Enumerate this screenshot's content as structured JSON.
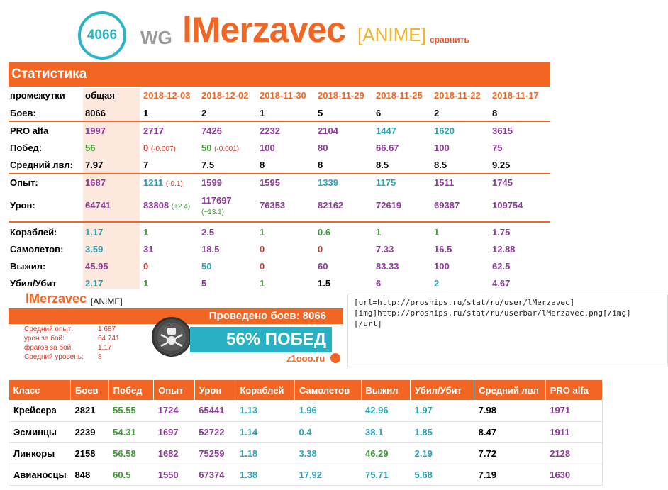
{
  "header": {
    "rating": "4066",
    "clan": "WG",
    "nickname": "lMerzavec",
    "alliance": "[ANIME]",
    "compare": "сравнить"
  },
  "stats": {
    "title": "Статистика",
    "periods_label": "промежутки",
    "columns": [
      "общая",
      "2018-12-03",
      "2018-12-02",
      "2018-11-30",
      "2018-11-29",
      "2018-11-25",
      "2018-11-22",
      "2018-11-17"
    ],
    "rows": [
      {
        "label": "Боев:",
        "cells": [
          {
            "v": "8066"
          },
          {
            "v": "1"
          },
          {
            "v": "2"
          },
          {
            "v": "1"
          },
          {
            "v": "5"
          },
          {
            "v": "6"
          },
          {
            "v": "2"
          },
          {
            "v": "8"
          }
        ]
      },
      {
        "label": "PRO alfa",
        "cells": [
          {
            "v": "1997"
          },
          {
            "v": "2717"
          },
          {
            "v": "7426"
          },
          {
            "v": "2232"
          },
          {
            "v": "2104"
          },
          {
            "v": "1447"
          },
          {
            "v": "1620"
          },
          {
            "v": "3615"
          }
        ]
      },
      {
        "label": "Побед:",
        "cells": [
          {
            "v": "56"
          },
          {
            "v": "0",
            "d": "(-0.007)"
          },
          {
            "v": "50",
            "d": "(-0.001)"
          },
          {
            "v": "100"
          },
          {
            "v": "80"
          },
          {
            "v": "66.67"
          },
          {
            "v": "100"
          },
          {
            "v": "75"
          }
        ]
      },
      {
        "label": "Средний лвл:",
        "cells": [
          {
            "v": "7.97"
          },
          {
            "v": "7"
          },
          {
            "v": "7.5"
          },
          {
            "v": "8"
          },
          {
            "v": "8"
          },
          {
            "v": "8.5"
          },
          {
            "v": "8.5"
          },
          {
            "v": "9.25"
          }
        ]
      },
      {
        "label": "Опыт:",
        "cells": [
          {
            "v": "1687"
          },
          {
            "v": "1211",
            "d": "(-0.1)"
          },
          {
            "v": "1599"
          },
          {
            "v": "1595"
          },
          {
            "v": "1339"
          },
          {
            "v": "1175"
          },
          {
            "v": "1511"
          },
          {
            "v": "1745"
          }
        ]
      },
      {
        "label": "Урон:",
        "cells": [
          {
            "v": "64741"
          },
          {
            "v": "83808",
            "d": "(+2.4)"
          },
          {
            "v": "117697",
            "d": "(+13.1)"
          },
          {
            "v": "76353"
          },
          {
            "v": "82162"
          },
          {
            "v": "72619"
          },
          {
            "v": "69387"
          },
          {
            "v": "109754"
          }
        ]
      },
      {
        "label": "Кораблей:",
        "cells": [
          {
            "v": "1.17"
          },
          {
            "v": "1"
          },
          {
            "v": "2.5"
          },
          {
            "v": "1"
          },
          {
            "v": "0.6"
          },
          {
            "v": "1"
          },
          {
            "v": "1"
          },
          {
            "v": "1.75"
          }
        ]
      },
      {
        "label": "Самолетов:",
        "cells": [
          {
            "v": "3.59"
          },
          {
            "v": "31"
          },
          {
            "v": "18.5"
          },
          {
            "v": "0"
          },
          {
            "v": "0"
          },
          {
            "v": "7.33"
          },
          {
            "v": "16.5"
          },
          {
            "v": "12.88"
          }
        ]
      },
      {
        "label": "Выжил:",
        "cells": [
          {
            "v": "45.95"
          },
          {
            "v": "0"
          },
          {
            "v": "50"
          },
          {
            "v": "0"
          },
          {
            "v": "60"
          },
          {
            "v": "83.33"
          },
          {
            "v": "100"
          },
          {
            "v": "62.5"
          }
        ]
      },
      {
        "label": "Убил/Убит",
        "cells": [
          {
            "v": "2.17"
          },
          {
            "v": "1"
          },
          {
            "v": "5"
          },
          {
            "v": "1"
          },
          {
            "v": "1.5"
          },
          {
            "v": "6"
          },
          {
            "v": "2"
          },
          {
            "v": "4.67"
          }
        ]
      }
    ]
  },
  "userbar": {
    "nickname": "lMerzavec",
    "tag": "[ANIME]",
    "battles": "Проведено боев: 8066",
    "info": [
      {
        "label": "Средний опыт:",
        "value": "1 687"
      },
      {
        "label": "урон за бой:",
        "value": "64 741"
      },
      {
        "label": "фрагов за бой:",
        "value": "1.17"
      },
      {
        "label": "Средний уровень:",
        "value": "8"
      }
    ],
    "wins": "56% ПОБЕД",
    "site": "z1ooo.ru"
  },
  "bbcode": [
    "[url=http://proships.ru/stat/ru/user/lMerzavec]",
    "[img]http://proships.ru/stat/ru/userbar/lMerzavec.png[/img]",
    "[/url]"
  ],
  "classes": {
    "headers": [
      "Класс",
      "Боев",
      "Побед",
      "Опыт",
      "Урон",
      "Кораблей",
      "Самолетов",
      "Выжил",
      "Убил/Убит",
      "Средний лвл",
      "PRO alfa"
    ],
    "rows": [
      [
        "Крейсера",
        "2821",
        "55.55",
        "1724",
        "65441",
        "1.13",
        "1.96",
        "42.96",
        "1.97",
        "7.98",
        "1971"
      ],
      [
        "Эсминцы",
        "2239",
        "54.31",
        "1697",
        "52722",
        "1.14",
        "0.4",
        "38.1",
        "1.85",
        "8.47",
        "1911"
      ],
      [
        "Линкоры",
        "2158",
        "56.58",
        "1682",
        "75259",
        "1.18",
        "3.38",
        "46.29",
        "2.19",
        "7.72",
        "2128"
      ],
      [
        "Авианосцы",
        "848",
        "60.5",
        "1550",
        "67374",
        "1.38",
        "17.92",
        "75.71",
        "5.68",
        "7.19",
        "1630"
      ]
    ]
  },
  "colors": {
    "accent": "#f26522",
    "purple": "#8e3a9a",
    "green": "#3f9c35",
    "teal": "#29a3b8",
    "red": "#d43a2a",
    "black": "#000000"
  }
}
